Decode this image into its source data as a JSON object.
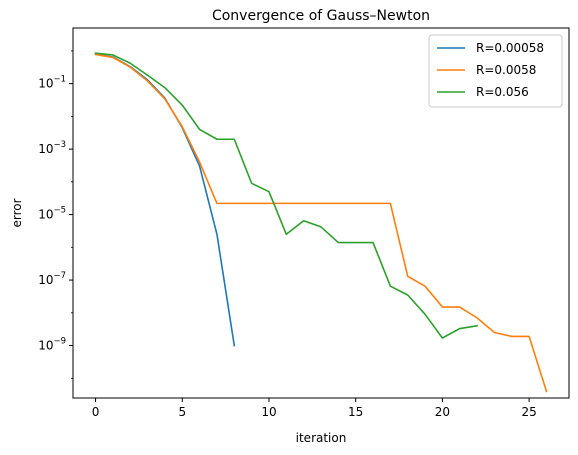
{
  "chart_data": {
    "type": "line",
    "title": "Convergence of Gauss–Newton",
    "xlabel": "iteration",
    "ylabel": "error",
    "xlim": [
      -1.3,
      27.3
    ],
    "ylim": [
      2.5e-11,
      5
    ],
    "yscale": "log",
    "grid": false,
    "legend_position": "top-right",
    "x_ticks": [
      0,
      5,
      10,
      15,
      20,
      25
    ],
    "x_tick_labels": [
      "0",
      "5",
      "10",
      "15",
      "20",
      "25"
    ],
    "y_ticks": [
      1e-09,
      1e-07,
      1e-05,
      0.001,
      0.1
    ],
    "y_tick_base": "10",
    "y_tick_exponents": [
      "−9",
      "−7",
      "−5",
      "−3",
      "−1"
    ],
    "series": [
      {
        "name": "R=0.00058",
        "color": "#1f77b4",
        "x": [
          0,
          1,
          2,
          3,
          4,
          5,
          6,
          7,
          8
        ],
        "y": [
          0.8,
          0.65,
          0.33,
          0.13,
          0.036,
          0.0045,
          0.0003,
          2.5e-06,
          1e-09
        ]
      },
      {
        "name": "R=0.0058",
        "color": "#ff7f0e",
        "x": [
          0,
          1,
          2,
          3,
          4,
          5,
          6,
          7,
          8,
          9,
          10,
          11,
          12,
          13,
          14,
          15,
          16,
          17,
          18,
          19,
          20,
          21,
          22,
          23,
          24,
          25,
          26
        ],
        "y": [
          0.78,
          0.63,
          0.32,
          0.12,
          0.034,
          0.0048,
          0.0004,
          2.2e-05,
          2.2e-05,
          2.2e-05,
          2.2e-05,
          2.2e-05,
          2.2e-05,
          2.2e-05,
          2.2e-05,
          2.2e-05,
          2.2e-05,
          2.2e-05,
          1.3e-07,
          6.5e-08,
          1.5e-08,
          1.5e-08,
          7e-09,
          2.5e-09,
          1.9e-09,
          1.9e-09,
          4e-11
        ]
      },
      {
        "name": "R=0.056",
        "color": "#2ca02c",
        "x": [
          0,
          1,
          2,
          3,
          4,
          5,
          6,
          7,
          8,
          9,
          10,
          11,
          12,
          13,
          14,
          15,
          16,
          17,
          18,
          19,
          20,
          21,
          22
        ],
        "y": [
          0.85,
          0.75,
          0.42,
          0.18,
          0.075,
          0.022,
          0.004,
          0.002,
          0.002,
          9e-05,
          5e-05,
          2.5e-06,
          6.5e-06,
          4.2e-06,
          1.4e-06,
          1.4e-06,
          1.4e-06,
          6.5e-08,
          3.5e-08,
          9e-09,
          1.7e-09,
          3.3e-09,
          4e-09
        ]
      }
    ]
  }
}
